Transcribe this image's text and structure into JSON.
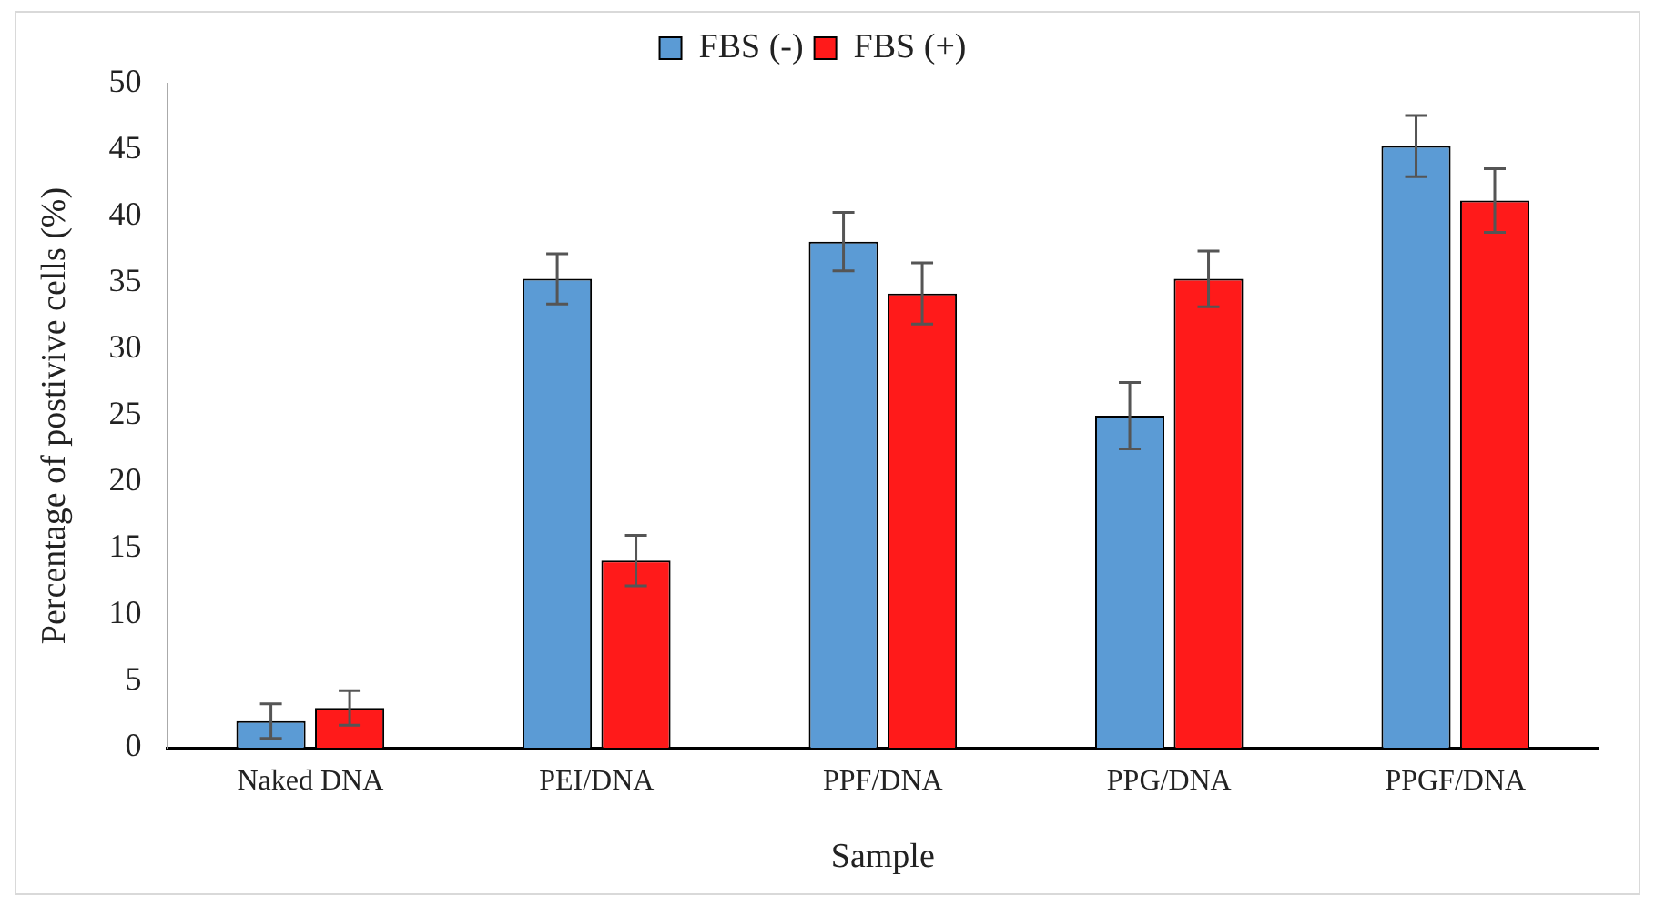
{
  "chart_data": {
    "type": "bar",
    "xlabel": "Sample",
    "ylabel": "Percentage of postivive cells (%)",
    "categories": [
      "Naked DNA",
      "PEI/DNA",
      "PPF/DNA",
      "PPG/DNA",
      "PPGF/DNA"
    ],
    "series": [
      {
        "name": "FBS (-)",
        "color": "#5b9bd5",
        "values": [
          2,
          35.3,
          38.1,
          25,
          45.3
        ],
        "errors": [
          1.3,
          1.9,
          2.2,
          2.5,
          2.3
        ]
      },
      {
        "name": "FBS (+)",
        "color": "#ff1a1a",
        "values": [
          3,
          14.1,
          34.2,
          35.3,
          41.2
        ],
        "errors": [
          1.3,
          1.9,
          2.3,
          2.1,
          2.4
        ]
      }
    ],
    "ylim": [
      0,
      50
    ],
    "yticks": [
      0,
      5,
      10,
      15,
      20,
      25,
      30,
      35,
      40,
      45,
      50
    ],
    "grid": false,
    "legend": "top"
  }
}
